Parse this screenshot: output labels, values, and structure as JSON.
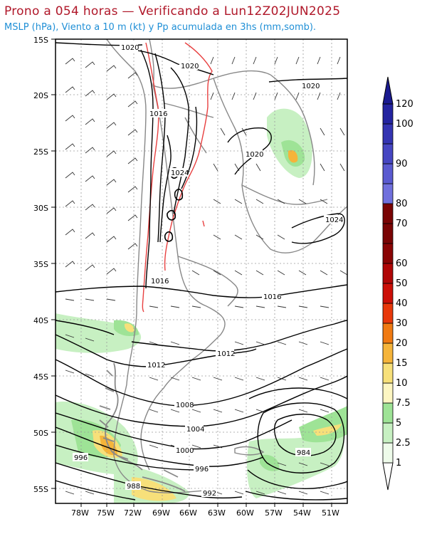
{
  "title": "Prono a 054 horas — Verificando a Lun12Z02JUN2025",
  "subtitle": "MSLP (hPa), Viento a 10 m (kt) y Pp acumulada en 3hs (mm,somb).",
  "lat_labels": [
    "15S",
    "20S",
    "25S",
    "30S",
    "35S",
    "40S",
    "45S",
    "50S",
    "55S"
  ],
  "lon_labels": [
    "78W",
    "75W",
    "72W",
    "69W",
    "66W",
    "63W",
    "60W",
    "57W",
    "54W",
    "51W"
  ],
  "isobar_labels": [
    "1020",
    "1020",
    "1020",
    "1016",
    "1024",
    "1020",
    "1024",
    "1016",
    "1016",
    "1012",
    "1012",
    "1008",
    "1004",
    "1000",
    "996",
    "996",
    "988",
    "992",
    "984"
  ],
  "colorbar": {
    "levels": [
      "1",
      "2.5",
      "5",
      "7.5",
      "10",
      "15",
      "20",
      "30",
      "40",
      "50",
      "60",
      "70",
      "80",
      "90",
      "100",
      "120"
    ],
    "colors": [
      "#eefbea",
      "#c7f0c2",
      "#9ee396",
      "#fdf6c2",
      "#f7e07a",
      "#f5b43a",
      "#f07a12",
      "#e8380a",
      "#cc0f07",
      "#a00606",
      "#7a64da",
      "#5050cc",
      "#3a3ab8",
      "#2a2aa8",
      "#1a1a90"
    ]
  },
  "colors": {
    "title": "#b0182a",
    "subtitle": "#1f8fd6",
    "isobar": "#000000",
    "terrain_contour": "#e84040",
    "borders": "#888888"
  }
}
